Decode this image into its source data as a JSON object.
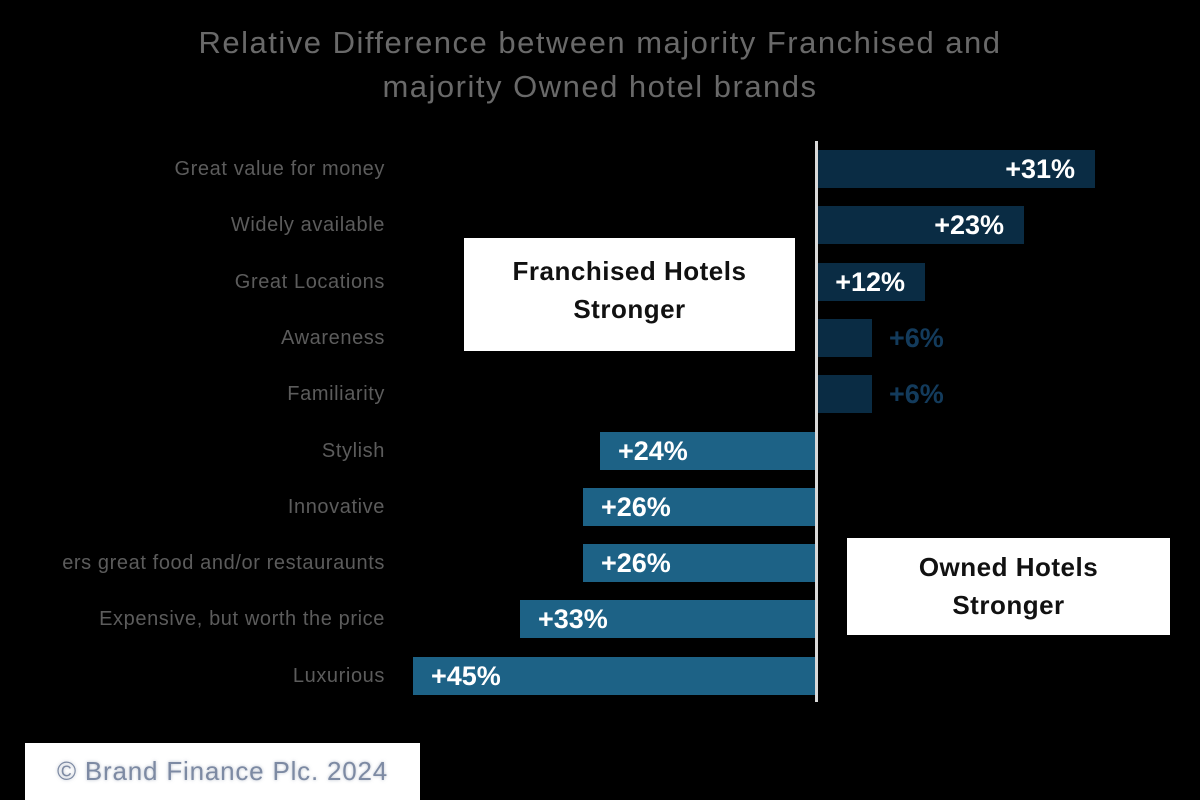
{
  "title": {
    "line1": "Relative Difference between majority Franchised and",
    "line2": "majority Owned hotel brands"
  },
  "annotations": {
    "left_box": {
      "line1": "Franchised Hotels",
      "line2": "Stronger"
    },
    "right_box": {
      "line1": "Owned Hotels",
      "line2": "Stronger"
    }
  },
  "footer": {
    "copyright": "© Brand Finance Plc. 2024"
  },
  "colors": {
    "background": "#000000",
    "bar_right": "#0a2c44",
    "bar_left": "#1d6286",
    "value_inside": "#ffffff",
    "value_outside": "#133b5c",
    "title": "#696969",
    "category_label": "#5c5c5c",
    "axis_line": "#d9d9d9",
    "box_background": "#ffffff",
    "box_text": "#111111",
    "copyright_text": "#7d8aa3"
  },
  "chart_data": {
    "type": "bar",
    "orientation": "horizontal-diverging",
    "title": "Relative Difference between majority Franchised and majority Owned hotel brands",
    "unit": "%",
    "axis": {
      "center_value": 0,
      "gridlines": false,
      "legend": "none"
    },
    "categories": [
      "Great value for money",
      "Widely available",
      "Great Locations",
      "Awareness",
      "Familiarity",
      "Stylish",
      "Innovative",
      "ers great food and/or restauraunts",
      "Expensive, but worth the price",
      "Luxurious"
    ],
    "rows": [
      {
        "label": "Great value for money",
        "value": 31,
        "value_label": "+31%",
        "direction": "right",
        "value_placement": "inside"
      },
      {
        "label": "Widely available",
        "value": 23,
        "value_label": "+23%",
        "direction": "right",
        "value_placement": "inside"
      },
      {
        "label": "Great Locations",
        "value": 12,
        "value_label": "+12%",
        "direction": "right",
        "value_placement": "inside"
      },
      {
        "label": "Awareness",
        "value": 6,
        "value_label": "+6%",
        "direction": "right",
        "value_placement": "outside"
      },
      {
        "label": "Familiarity",
        "value": 6,
        "value_label": "+6%",
        "direction": "right",
        "value_placement": "outside"
      },
      {
        "label": "Stylish",
        "value": 24,
        "value_label": "+24%",
        "direction": "left",
        "value_placement": "inside"
      },
      {
        "label": "Innovative",
        "value": 26,
        "value_label": "+26%",
        "direction": "left",
        "value_placement": "inside"
      },
      {
        "label": "ers great food and/or restauraunts",
        "value": 26,
        "value_label": "+26%",
        "direction": "left",
        "value_placement": "inside"
      },
      {
        "label": "Expensive, but worth the price",
        "value": 33,
        "value_label": "+33%",
        "direction": "left",
        "value_placement": "inside"
      },
      {
        "label": "Luxurious",
        "value": 45,
        "value_label": "+45%",
        "direction": "left",
        "value_placement": "inside"
      }
    ]
  }
}
